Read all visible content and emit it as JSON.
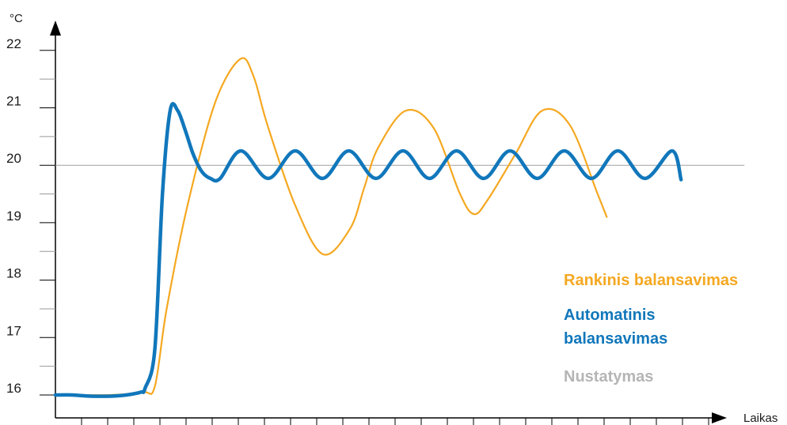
{
  "chart_data": {
    "type": "line",
    "y_unit": "°C",
    "xlabel": "Laikas",
    "ylim": [
      15.6,
      22.6
    ],
    "xlim": [
      0,
      100
    ],
    "y_ticks": [
      16,
      17,
      18,
      19,
      20,
      21,
      22
    ],
    "grid": false,
    "legend_position": "right",
    "series": [
      {
        "name": "Rankinis balansavimas",
        "color": "#f5a821",
        "x": [
          0,
          3.4,
          8,
          12.6,
          14.3,
          16,
          19,
          23,
          26.6,
          28.5,
          30.5,
          34.5,
          38.5,
          42.4,
          44.4,
          46.4,
          50.4,
          54.4,
          58.2,
          60.2,
          62.2,
          66.2,
          70,
          74,
          78,
          79.3
        ],
        "values": [
          16.0,
          16.0,
          16.0,
          16.05,
          16.15,
          17.5,
          19.3,
          21.1,
          21.85,
          21.55,
          20.7,
          19.3,
          18.45,
          18.9,
          19.6,
          20.3,
          20.95,
          20.65,
          19.5,
          19.15,
          19.4,
          20.2,
          20.95,
          20.7,
          19.5,
          19.1
        ]
      },
      {
        "name": "Automatinis balansavimas",
        "color": "#1177bb",
        "x": [
          0,
          2.4,
          5,
          8,
          10.2,
          12.3,
          12.9,
          14.3,
          15.4,
          16.5,
          17.6,
          18.7,
          19.8,
          21,
          22.3,
          23.7,
          26.7,
          30.6,
          34.5,
          38.4,
          42.2,
          46.1,
          50,
          53.8,
          57.7,
          61.6,
          65.4,
          69.3,
          73.2,
          77.1,
          80.9,
          84.8,
          88.7,
          90.0
        ],
        "values": [
          16.0,
          16.0,
          15.98,
          15.98,
          16.0,
          16.05,
          16.12,
          16.8,
          19.5,
          20.95,
          20.95,
          20.6,
          20.2,
          19.9,
          19.77,
          19.77,
          20.25,
          19.77,
          20.25,
          19.77,
          20.25,
          19.77,
          20.25,
          19.77,
          20.25,
          19.77,
          20.25,
          19.77,
          20.25,
          19.77,
          20.25,
          19.77,
          20.25,
          19.75
        ]
      },
      {
        "name": "Nustatymas",
        "color": "#9a9a9a",
        "x": [
          0,
          90
        ],
        "values": [
          20,
          20
        ]
      }
    ]
  }
}
